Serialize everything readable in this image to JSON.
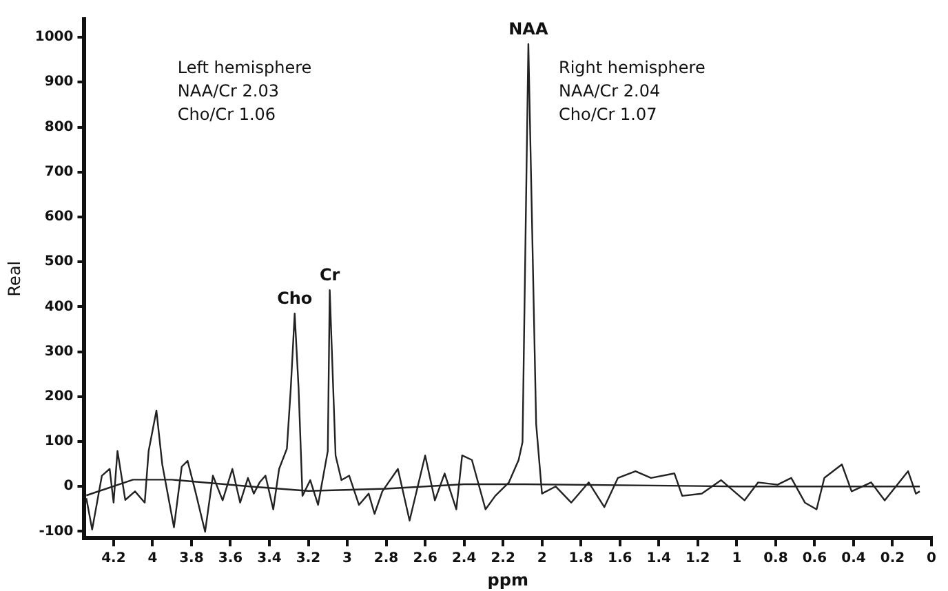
{
  "chart_data": {
    "type": "line",
    "xlabel": "ppm",
    "ylabel": "Real",
    "xlim": [
      4.35,
      0
    ],
    "xticks": [
      4.2,
      4,
      3.8,
      3.6,
      3.4,
      3.2,
      3,
      2.8,
      2.6,
      2.4,
      2.2,
      2,
      1.8,
      1.6,
      1.4,
      1.2,
      1,
      0.8,
      0.6,
      0.4,
      0.2,
      0
    ],
    "ylim": [
      -115,
      1040
    ],
    "yticks": [
      -100,
      0,
      100,
      200,
      300,
      400,
      500,
      600,
      700,
      800,
      900,
      1000
    ],
    "grid": false,
    "legend": false,
    "marker": "none",
    "line_style": "solid",
    "annotations": [
      "Left hemisphere\nNAA/Cr 2.03\nCho/Cr 1.06",
      "Right hemisphere\nNAA/Cr 2.04\nCho/Cr 1.07",
      {
        "text": "Cho",
        "x": 3.27,
        "y": 385
      },
      {
        "text": "Cr",
        "x": 3.09,
        "y": 437
      },
      {
        "text": "NAA",
        "x": 2.07,
        "y": 985
      }
    ],
    "series": [
      {
        "color": "#222222",
        "x": [
          4.34,
          4.31,
          4.26,
          4.22,
          4.2,
          4.18,
          4.14,
          4.09,
          4.04,
          4.02,
          3.98,
          3.95,
          3.89,
          3.85,
          3.82,
          3.78,
          3.73,
          3.69,
          3.64,
          3.59,
          3.55,
          3.51,
          3.48,
          3.45,
          3.42,
          3.38,
          3.35,
          3.31,
          3.29,
          3.27,
          3.25,
          3.23,
          3.19,
          3.15,
          3.1,
          3.09,
          3.06,
          3.03,
          2.99,
          2.94,
          2.89,
          2.86,
          2.82,
          2.74,
          2.68,
          2.6,
          2.55,
          2.5,
          2.44,
          2.41,
          2.36,
          2.29,
          2.24,
          2.17,
          2.12,
          2.1,
          2.07,
          2.03,
          2,
          1.93,
          1.85,
          1.76,
          1.68,
          1.61,
          1.52,
          1.44,
          1.32,
          1.28,
          1.18,
          1.08,
          0.96,
          0.89,
          0.79,
          0.72,
          0.65,
          0.59,
          0.55,
          0.46,
          0.41,
          0.31,
          0.24,
          0.12,
          0.08,
          0.06
        ],
        "values": [
          -26,
          -96,
          24,
          39,
          -36,
          79,
          -30,
          -11,
          -36,
          79,
          169,
          49,
          -91,
          44,
          57,
          -11,
          -101,
          24,
          -31,
          39,
          -36,
          19,
          -16,
          9,
          24,
          -51,
          39,
          84,
          219,
          385,
          219,
          -21,
          14,
          -41,
          79,
          437,
          69,
          14,
          24,
          -41,
          -16,
          -61,
          -11,
          39,
          -76,
          69,
          -31,
          29,
          -51,
          69,
          59,
          -51,
          -21,
          9,
          59,
          99,
          985,
          139,
          -16,
          0,
          -36,
          9,
          -46,
          19,
          34,
          19,
          29,
          -21,
          -16,
          14,
          -31,
          9,
          4,
          19,
          -36,
          -51,
          19,
          49,
          -11,
          9,
          -31,
          34,
          -16,
          -11
        ]
      },
      {
        "color": "#222222",
        "x": [
          4.34,
          4.1,
          3.9,
          3.5,
          3.2,
          2.8,
          2.4,
          2.1,
          1,
          0.06
        ],
        "values": [
          -20,
          15,
          15,
          0,
          -10,
          -5,
          5,
          5,
          0,
          0
        ]
      }
    ]
  }
}
